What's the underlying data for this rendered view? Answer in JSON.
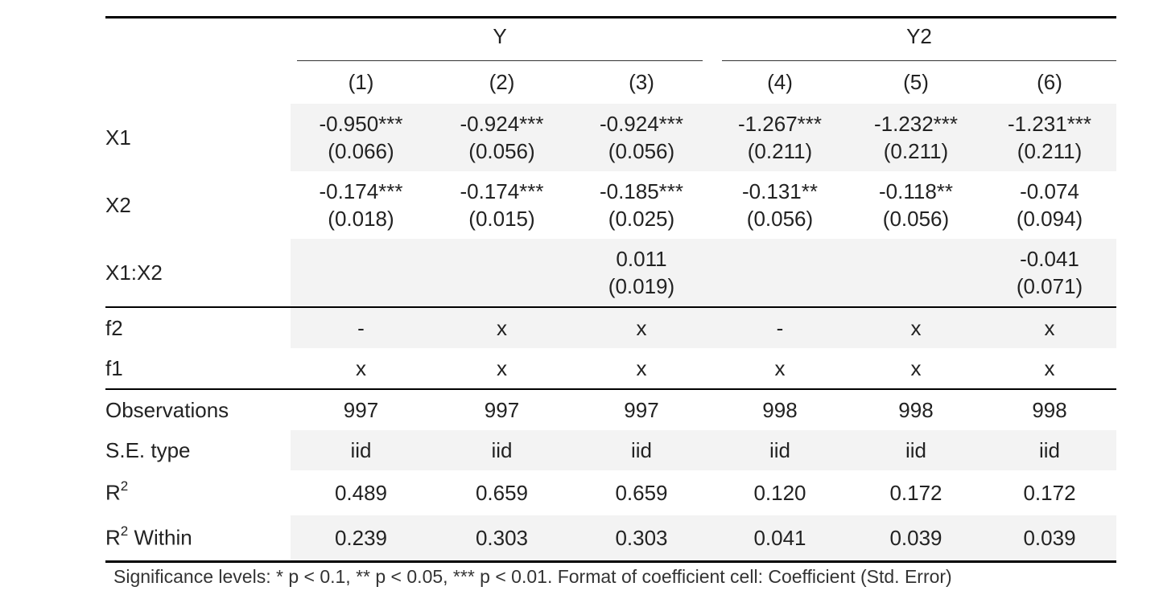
{
  "table": {
    "groups": [
      {
        "label": "Y",
        "span": 3
      },
      {
        "label": "Y2",
        "span": 3
      }
    ],
    "models": [
      "(1)",
      "(2)",
      "(3)",
      "(4)",
      "(5)",
      "(6)"
    ],
    "coef_rows": [
      {
        "label": "X1",
        "coef": [
          "-0.950***",
          "-0.924***",
          "-0.924***",
          "-1.267***",
          "-1.232***",
          "-1.231***"
        ],
        "se": [
          "(0.066)",
          "(0.056)",
          "(0.056)",
          "(0.211)",
          "(0.211)",
          "(0.211)"
        ]
      },
      {
        "label": "X2",
        "coef": [
          "-0.174***",
          "-0.174***",
          "-0.185***",
          "-0.131**",
          "-0.118**",
          "-0.074"
        ],
        "se": [
          "(0.018)",
          "(0.015)",
          "(0.025)",
          "(0.056)",
          "(0.056)",
          "(0.094)"
        ]
      },
      {
        "label": "X1:X2",
        "coef": [
          "",
          "",
          "0.011",
          "",
          "",
          "-0.041"
        ],
        "se": [
          "",
          "",
          "(0.019)",
          "",
          "",
          "(0.071)"
        ]
      }
    ],
    "fe_rows": [
      {
        "label": "f2",
        "values": [
          "-",
          "x",
          "x",
          "-",
          "x",
          "x"
        ]
      },
      {
        "label": "f1",
        "values": [
          "x",
          "x",
          "x",
          "x",
          "x",
          "x"
        ]
      }
    ],
    "stat_rows": [
      {
        "label": "Observations",
        "values": [
          "997",
          "997",
          "997",
          "998",
          "998",
          "998"
        ]
      },
      {
        "label": "S.E. type",
        "values": [
          "iid",
          "iid",
          "iid",
          "iid",
          "iid",
          "iid"
        ]
      }
    ],
    "r2_rows": [
      {
        "label_base": "R",
        "label_sup": "2",
        "label_suffix": "",
        "values": [
          "0.489",
          "0.659",
          "0.659",
          "0.120",
          "0.172",
          "0.172"
        ]
      },
      {
        "label_base": "R",
        "label_sup": "2",
        "label_suffix": " Within",
        "values": [
          "0.239",
          "0.303",
          "0.303",
          "0.041",
          "0.039",
          "0.039"
        ]
      }
    ]
  },
  "footnote": "Significance levels: * p < 0.1, ** p < 0.05, *** p < 0.01. Format of coefficient cell: Coefficient (Std. Error)"
}
